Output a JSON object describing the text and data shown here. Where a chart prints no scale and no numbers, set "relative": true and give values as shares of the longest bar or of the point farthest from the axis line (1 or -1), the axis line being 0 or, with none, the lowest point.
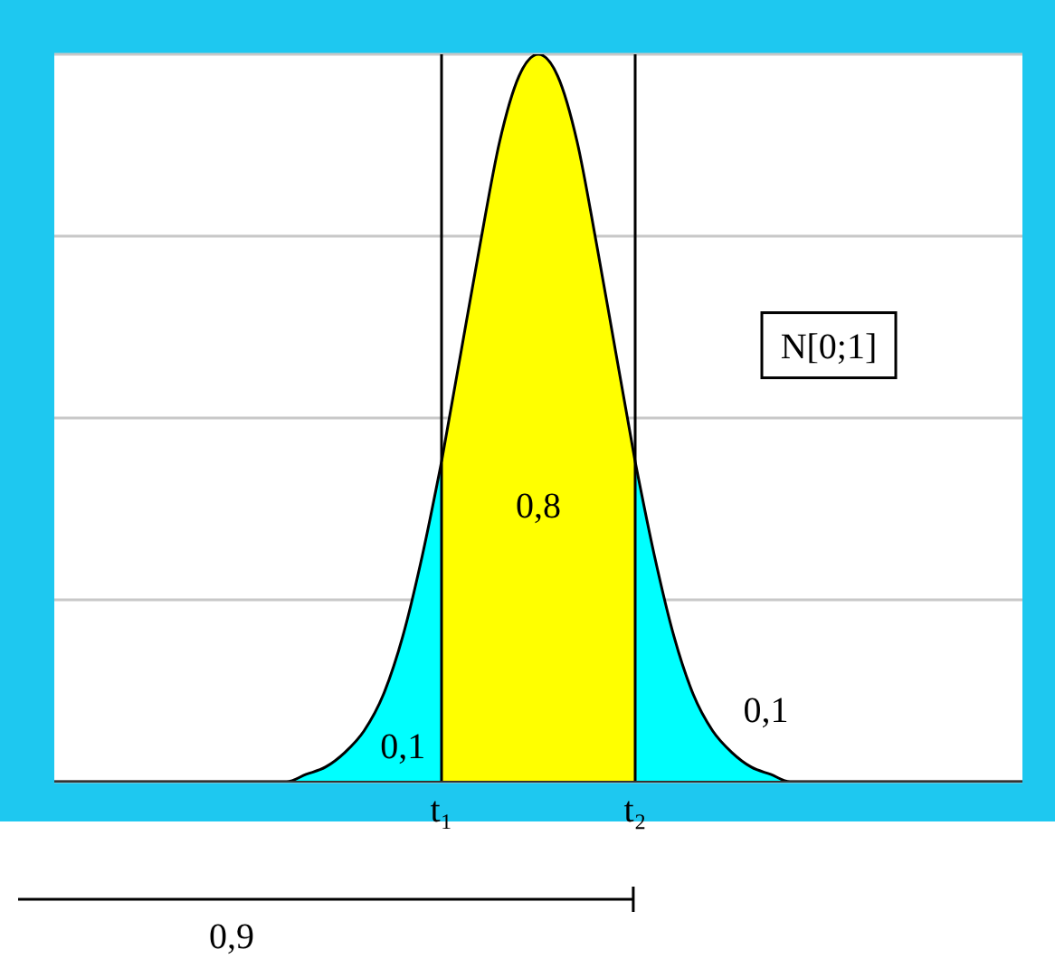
{
  "chart_data": {
    "type": "area",
    "relative": true,
    "grid": "y",
    "line_style": "solid",
    "categories": [
      null,
      null,
      null,
      null,
      null,
      null,
      null,
      null,
      null,
      null,
      null,
      null,
      null,
      null,
      null,
      null,
      null,
      null,
      null,
      null,
      "t₁",
      null,
      null,
      null,
      null,
      null,
      null,
      null,
      null,
      null,
      "t₂",
      null,
      null,
      null,
      null,
      null,
      null,
      null,
      null,
      null,
      null,
      null,
      null,
      null,
      null,
      null,
      null,
      null,
      null,
      null,
      null
    ],
    "series": [
      {
        "color": "#00ffff",
        "values": [
          0,
          0,
          0,
          0,
          0,
          0,
          0,
          0,
          0,
          0,
          0,
          0,
          0,
          0.01,
          0.02,
          0.04,
          0.07,
          0.12,
          0.2,
          0.31,
          0.44,
          null,
          null,
          null,
          null,
          null,
          null,
          null,
          null,
          null,
          null,
          null,
          null,
          null,
          null,
          null,
          null,
          null,
          null,
          null,
          null,
          null,
          null,
          null,
          null,
          null,
          null,
          null,
          null,
          null,
          null
        ]
      },
      {
        "color": "#ffff00",
        "values": [
          null,
          null,
          null,
          null,
          null,
          null,
          null,
          null,
          null,
          null,
          null,
          null,
          null,
          null,
          null,
          null,
          null,
          null,
          null,
          null,
          0.44,
          0.59,
          0.74,
          0.88,
          0.97,
          1,
          0.97,
          0.88,
          0.74,
          0.59,
          0.44,
          null,
          null,
          null,
          null,
          null,
          null,
          null,
          null,
          null,
          null,
          null,
          null,
          null,
          null,
          null,
          null,
          null,
          null,
          null,
          null
        ]
      },
      {
        "color": "#00ffff",
        "values": [
          null,
          null,
          null,
          null,
          null,
          null,
          null,
          null,
          null,
          null,
          null,
          null,
          null,
          null,
          null,
          null,
          null,
          null,
          null,
          null,
          null,
          null,
          null,
          null,
          null,
          null,
          null,
          null,
          null,
          null,
          0.44,
          0.31,
          0.2,
          0.12,
          0.07,
          0.04,
          0.02,
          0.01,
          0,
          0,
          0,
          0,
          0,
          0,
          0,
          0,
          0,
          0,
          0,
          0,
          0
        ]
      }
    ],
    "ref_lines": [
      {
        "axis": "x",
        "value": "t₁",
        "color": "#000000"
      },
      {
        "axis": "x",
        "value": "t₂",
        "color": "#000000"
      }
    ],
    "annotations": [
      "N[0;1]",
      "0,8",
      "0,1",
      "0,1",
      "0,9"
    ]
  }
}
